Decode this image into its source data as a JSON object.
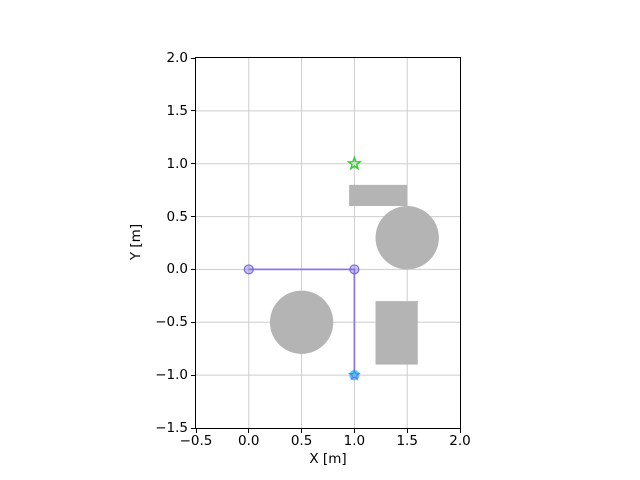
{
  "figure": {
    "background": "#ffffff"
  },
  "chart_data": {
    "type": "scatter",
    "title": "",
    "xlabel": "X [m]",
    "ylabel": "Y [m]",
    "xlim": [
      -0.5,
      2.0
    ],
    "ylim": [
      -1.5,
      2.0
    ],
    "grid": true,
    "grid_color": "#cdcdcd",
    "spine_color": "#000000",
    "obstacle_color": "#b4b4b4",
    "xticks": [
      {
        "v": -0.5,
        "label": "−0.5"
      },
      {
        "v": 0.0,
        "label": "0.0"
      },
      {
        "v": 0.5,
        "label": "0.5"
      },
      {
        "v": 1.0,
        "label": "1.0"
      },
      {
        "v": 1.5,
        "label": "1.5"
      },
      {
        "v": 2.0,
        "label": "2.0"
      }
    ],
    "yticks": [
      {
        "v": 2.0,
        "label": "2.0"
      },
      {
        "v": 1.5,
        "label": "1.5"
      },
      {
        "v": 1.0,
        "label": "1.0"
      },
      {
        "v": 0.5,
        "label": "0.5"
      },
      {
        "v": 0.0,
        "label": "0.0"
      },
      {
        "v": -0.5,
        "label": "−0.5"
      },
      {
        "v": -1.0,
        "label": "−1.0"
      },
      {
        "v": -1.5,
        "label": "−1.5"
      }
    ],
    "obstacles": {
      "circles": [
        {
          "cx": 0.5,
          "cy": -0.5,
          "r": 0.3
        },
        {
          "cx": 1.5,
          "cy": 0.3,
          "r": 0.3
        }
      ],
      "rects": [
        {
          "x": 0.95,
          "y": 0.6,
          "w": 0.55,
          "h": 0.2
        },
        {
          "x": 1.2,
          "y": -0.9,
          "w": 0.4,
          "h": 0.6
        }
      ]
    },
    "path": {
      "color": "#7b68ee",
      "opacity": 0.85,
      "points": [
        [
          0,
          0
        ],
        [
          1,
          0
        ],
        [
          1,
          -1
        ]
      ]
    },
    "waypoints": {
      "fill": "rgba(123,104,238,0.4)",
      "edge": "rgba(106,90,205,0.85)",
      "points": [
        [
          0,
          0
        ],
        [
          1,
          0
        ]
      ]
    },
    "start": {
      "x": 1,
      "y": -1,
      "circle_color": "#3ed3f0",
      "star_color": "#7b68ee"
    },
    "goal": {
      "x": 1,
      "y": 1,
      "color": "#32cd32"
    }
  }
}
